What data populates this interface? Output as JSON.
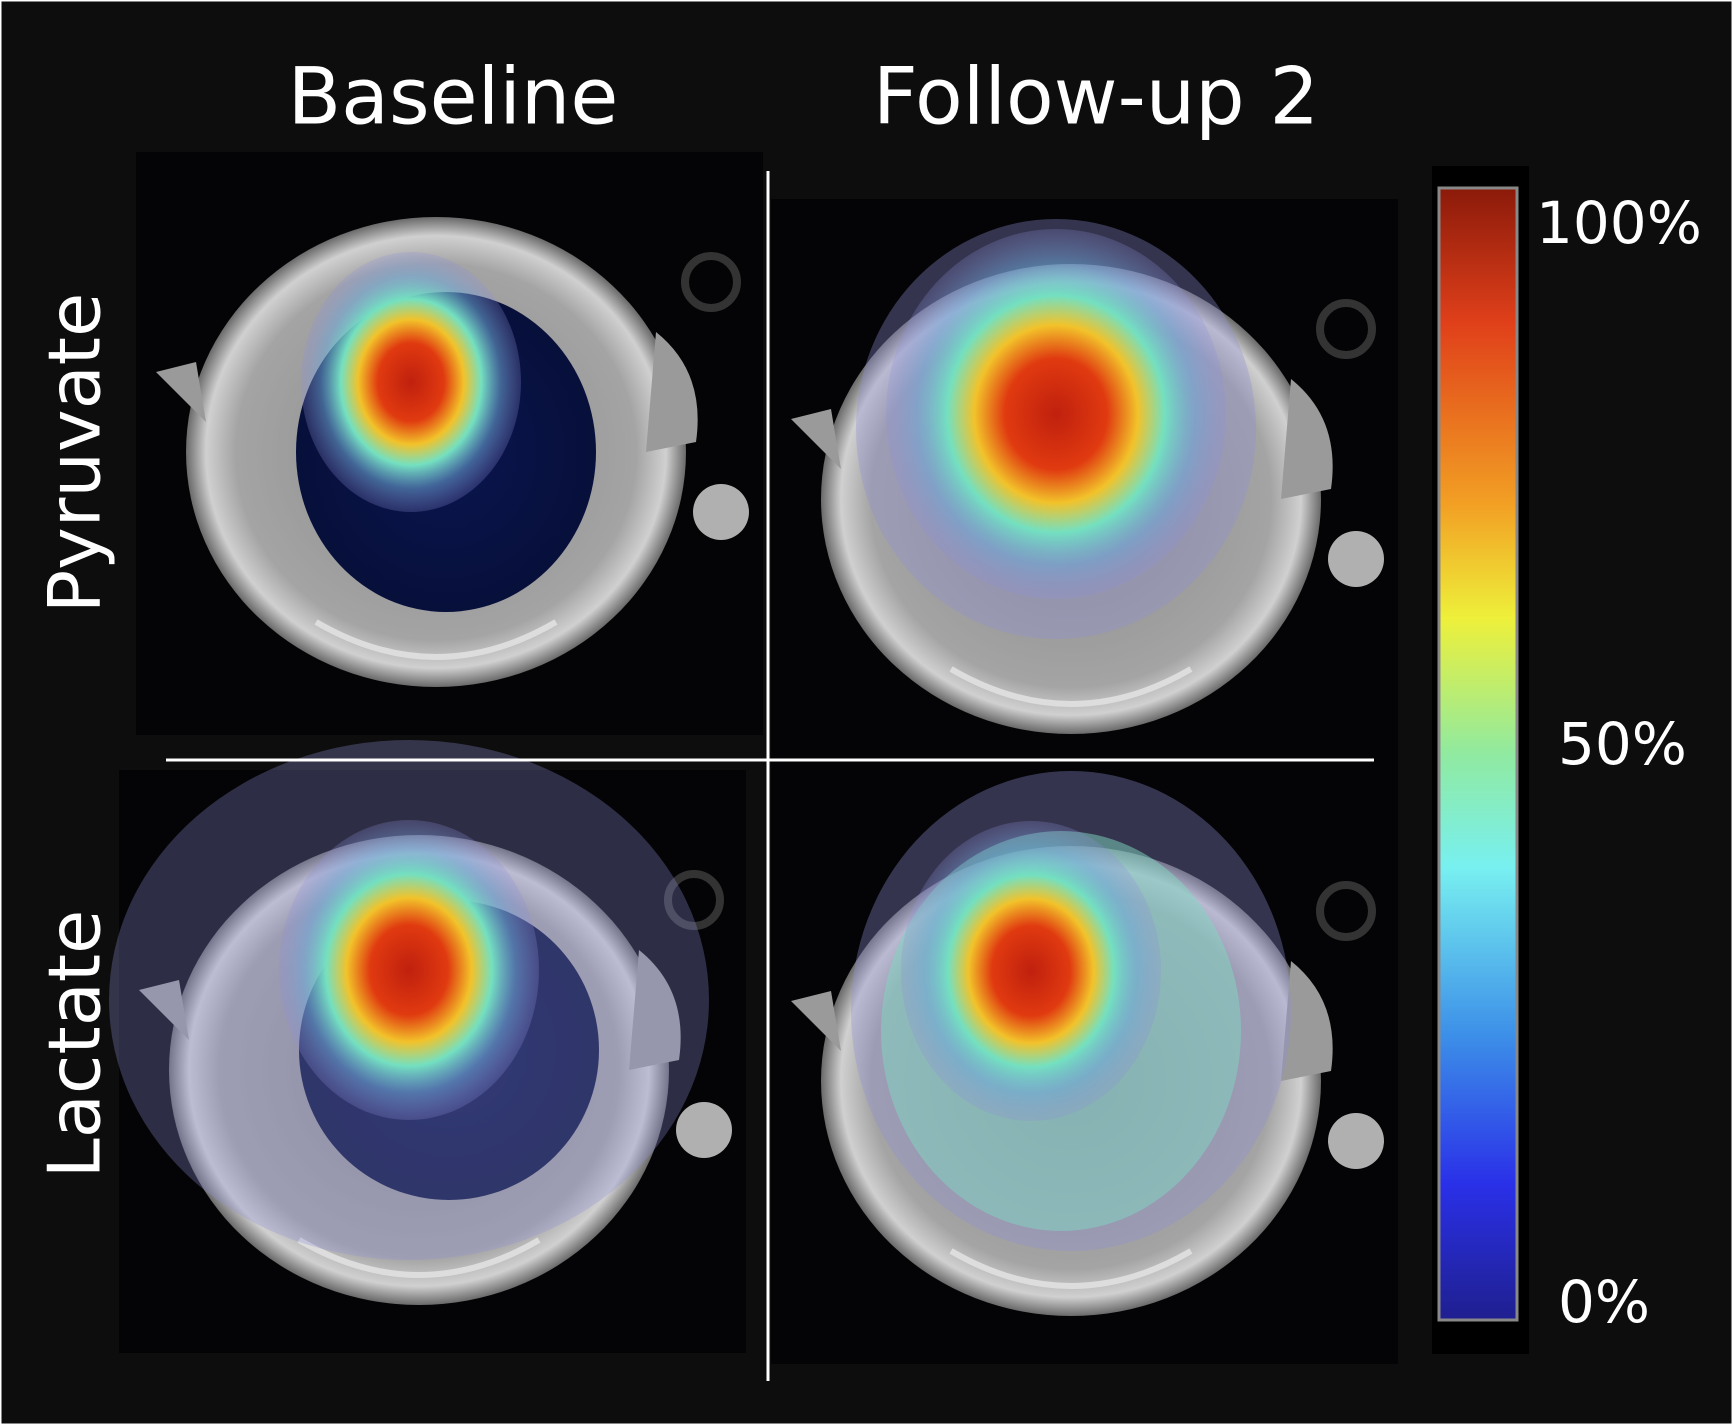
{
  "columns": [
    "Baseline",
    "Follow-up 2"
  ],
  "rows": [
    "Pyruvate",
    "Lactate"
  ],
  "colorbar": {
    "labels": [
      "100%",
      "50%",
      "0%"
    ]
  }
}
